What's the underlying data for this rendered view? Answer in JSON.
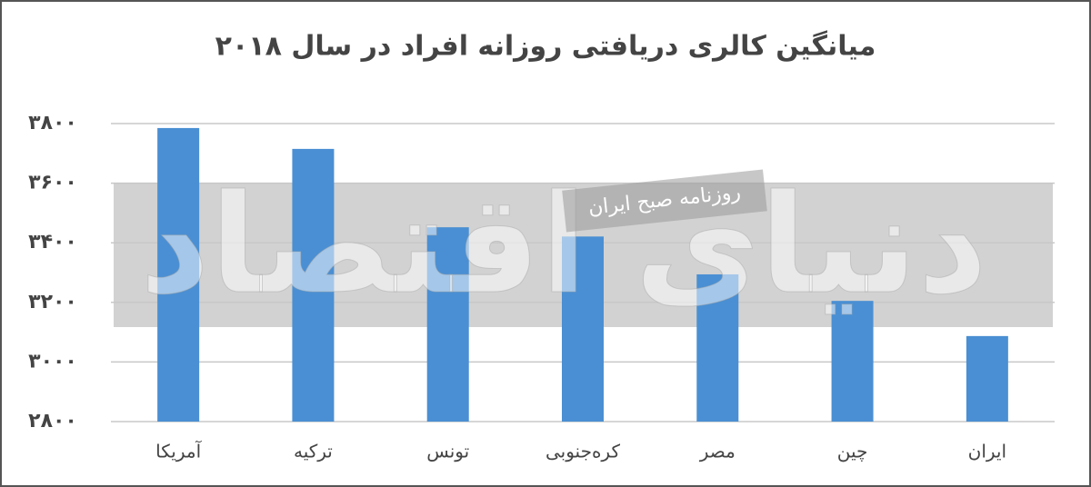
{
  "chart_data": {
    "type": "bar",
    "title": "میانگین کالری دریافتی روزانه افراد در سال ۲۰۱۸",
    "categories": [
      "آمریکا",
      "ترکیه",
      "تونس",
      "کره‌جنوبی",
      "مصر",
      "چین",
      "ایران"
    ],
    "values": [
      3785,
      3715,
      3452,
      3421,
      3294,
      3205,
      3087
    ],
    "color": "#4a8fd3",
    "ylim": [
      2800,
      3800
    ],
    "yticks": [
      {
        "value": 2800,
        "label": "۲۸۰۰"
      },
      {
        "value": 3000,
        "label": "۳۰۰۰"
      },
      {
        "value": 3200,
        "label": "۳۲۰۰"
      },
      {
        "value": 3400,
        "label": "۳۴۰۰"
      },
      {
        "value": 3600,
        "label": "۳۶۰۰"
      },
      {
        "value": 3800,
        "label": "۳۸۰۰"
      }
    ],
    "grid": true,
    "watermark": {
      "logo": "دنیای اقتصاد",
      "tagline": "روزنامه صبح ایران"
    }
  }
}
